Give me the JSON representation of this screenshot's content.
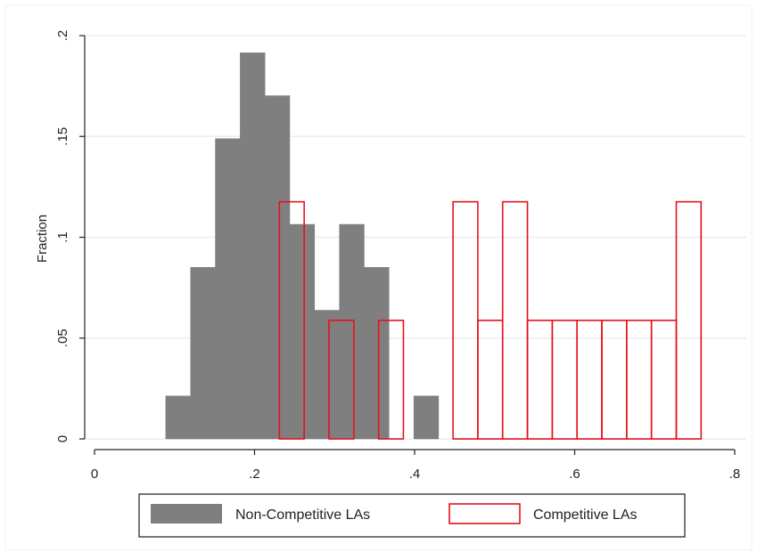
{
  "chart_data": {
    "type": "bar",
    "subtype": "histogram-overlay",
    "title": "",
    "xlabel": "",
    "ylabel": "Fraction",
    "xlim": [
      -0.01,
      0.81
    ],
    "ylim": [
      0,
      0.2
    ],
    "x_ticks": [
      0,
      0.2,
      0.4,
      0.6,
      0.8
    ],
    "x_tick_labels": [
      "0",
      ".2",
      ".4",
      ".6",
      ".8"
    ],
    "y_ticks": [
      0,
      0.05,
      0.1,
      0.15,
      0.2
    ],
    "y_tick_labels": [
      "0",
      ".05",
      ".1",
      ".15",
      ".2"
    ],
    "grid": true,
    "legend_position": "bottom",
    "series": [
      {
        "name": "Non-Competitive LAs",
        "style": "filled",
        "color": "#7f7f7f",
        "bins": [
          {
            "start": 0.089,
            "end": 0.12,
            "value": 0.0213
          },
          {
            "start": 0.12,
            "end": 0.151,
            "value": 0.0851
          },
          {
            "start": 0.151,
            "end": 0.182,
            "value": 0.1489
          },
          {
            "start": 0.182,
            "end": 0.213,
            "value": 0.1915
          },
          {
            "start": 0.213,
            "end": 0.244,
            "value": 0.1702
          },
          {
            "start": 0.244,
            "end": 0.275,
            "value": 0.1064
          },
          {
            "start": 0.275,
            "end": 0.306,
            "value": 0.0638
          },
          {
            "start": 0.306,
            "end": 0.337,
            "value": 0.1064
          },
          {
            "start": 0.337,
            "end": 0.368,
            "value": 0.0851
          },
          {
            "start": 0.399,
            "end": 0.43,
            "value": 0.0213
          }
        ]
      },
      {
        "name": "Competitive LAs",
        "style": "outline",
        "color": "#e8111b",
        "bins": [
          {
            "start": 0.231,
            "end": 0.262,
            "value": 0.1176
          },
          {
            "start": 0.293,
            "end": 0.324,
            "value": 0.0588
          },
          {
            "start": 0.355,
            "end": 0.386,
            "value": 0.0588
          },
          {
            "start": 0.448,
            "end": 0.479,
            "value": 0.1176
          },
          {
            "start": 0.479,
            "end": 0.51,
            "value": 0.0588
          },
          {
            "start": 0.51,
            "end": 0.541,
            "value": 0.1176
          },
          {
            "start": 0.541,
            "end": 0.572,
            "value": 0.0588
          },
          {
            "start": 0.572,
            "end": 0.603,
            "value": 0.0588
          },
          {
            "start": 0.603,
            "end": 0.634,
            "value": 0.0588
          },
          {
            "start": 0.634,
            "end": 0.665,
            "value": 0.0588
          },
          {
            "start": 0.665,
            "end": 0.696,
            "value": 0.0588
          },
          {
            "start": 0.696,
            "end": 0.727,
            "value": 0.0588
          },
          {
            "start": 0.727,
            "end": 0.758,
            "value": 0.1176
          }
        ]
      }
    ],
    "legend": {
      "items": [
        {
          "label": "Non-Competitive LAs",
          "style": "filled"
        },
        {
          "label": "Competitive LAs",
          "style": "outline"
        }
      ]
    }
  },
  "colors": {
    "background": "#ffffff",
    "plot_background": "#ffffff",
    "gridline": "#e8eef2",
    "axis": "#222222",
    "non_competitive_fill": "#7f7f7f",
    "competitive_outline": "#e8111b"
  }
}
